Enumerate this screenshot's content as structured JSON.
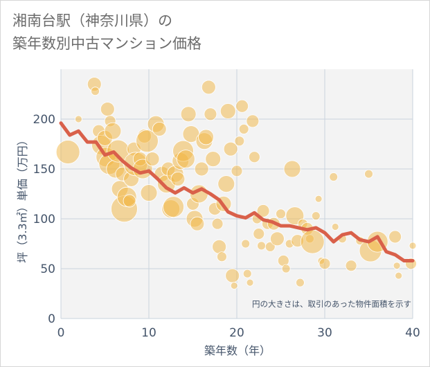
{
  "title_line1": "湘南台駅（神奈川県）の",
  "title_line2": "築年数別中古マンション価格",
  "chart_data": {
    "type": "scatter",
    "xlabel": "築年数（年）",
    "ylabel": "坪（3.3㎡）単価（万円）",
    "note": "円の大きさは、取引のあった物件面積を示す",
    "xlim": [
      0,
      40
    ],
    "ylim": [
      0,
      250
    ],
    "xticks": [
      "0",
      "10",
      "20",
      "30",
      "40"
    ],
    "yticks": [
      "0",
      "50",
      "100",
      "150",
      "200"
    ],
    "bubble_color": "#f2b541",
    "line_color": "#d9604a",
    "grid": true,
    "trend_line": {
      "x": [
        0,
        1,
        2,
        3,
        4,
        5,
        6,
        7,
        8,
        9,
        10,
        11,
        12,
        13,
        14,
        15,
        16,
        17,
        18,
        19,
        20,
        21,
        22,
        23,
        24,
        25,
        26,
        27,
        28,
        29,
        30,
        31,
        32,
        33,
        34,
        35,
        36,
        37,
        38,
        39,
        40
      ],
      "y": [
        196,
        184,
        188,
        177,
        177,
        164,
        167,
        158,
        151,
        146,
        148,
        140,
        131,
        126,
        131,
        126,
        130,
        125,
        119,
        107,
        103,
        101,
        106,
        99,
        97,
        93,
        93,
        91,
        89,
        91,
        86,
        77,
        84,
        86,
        79,
        77,
        82,
        67,
        64,
        58,
        58
      ]
    },
    "bubbles": [
      {
        "x": 0.8,
        "y": 167,
        "s": 17
      },
      {
        "x": 2,
        "y": 200,
        "s": 5
      },
      {
        "x": 3.8,
        "y": 235,
        "s": 10
      },
      {
        "x": 3.9,
        "y": 228,
        "s": 6
      },
      {
        "x": 4.3,
        "y": 188,
        "s": 9
      },
      {
        "x": 4.6,
        "y": 174,
        "s": 14
      },
      {
        "x": 5,
        "y": 181,
        "s": 11
      },
      {
        "x": 5.1,
        "y": 162,
        "s": 14
      },
      {
        "x": 5.3,
        "y": 210,
        "s": 10
      },
      {
        "x": 5.6,
        "y": 198,
        "s": 8
      },
      {
        "x": 5.9,
        "y": 188,
        "s": 12
      },
      {
        "x": 5.5,
        "y": 155,
        "s": 15
      },
      {
        "x": 6.2,
        "y": 150,
        "s": 13
      },
      {
        "x": 6.5,
        "y": 168,
        "s": 16
      },
      {
        "x": 6.7,
        "y": 130,
        "s": 12
      },
      {
        "x": 7,
        "y": 145,
        "s": 10
      },
      {
        "x": 7.2,
        "y": 110,
        "s": 19
      },
      {
        "x": 7.5,
        "y": 122,
        "s": 14
      },
      {
        "x": 7.8,
        "y": 118,
        "s": 9
      },
      {
        "x": 8,
        "y": 140,
        "s": 11
      },
      {
        "x": 8.3,
        "y": 170,
        "s": 10
      },
      {
        "x": 8.5,
        "y": 155,
        "s": 17
      },
      {
        "x": 9,
        "y": 160,
        "s": 10
      },
      {
        "x": 9.3,
        "y": 150,
        "s": 14
      },
      {
        "x": 9.5,
        "y": 183,
        "s": 10
      },
      {
        "x": 9.8,
        "y": 178,
        "s": 16
      },
      {
        "x": 10,
        "y": 126,
        "s": 12
      },
      {
        "x": 10.4,
        "y": 160,
        "s": 10
      },
      {
        "x": 10.8,
        "y": 195,
        "s": 12
      },
      {
        "x": 11.2,
        "y": 190,
        "s": 10
      },
      {
        "x": 11.5,
        "y": 145,
        "s": 11
      },
      {
        "x": 12,
        "y": 135,
        "s": 13
      },
      {
        "x": 12.2,
        "y": 150,
        "s": 10
      },
      {
        "x": 12.5,
        "y": 110,
        "s": 13
      },
      {
        "x": 12.8,
        "y": 112,
        "s": 15
      },
      {
        "x": 13,
        "y": 145,
        "s": 12
      },
      {
        "x": 13.3,
        "y": 140,
        "s": 10
      },
      {
        "x": 13.6,
        "y": 158,
        "s": 12
      },
      {
        "x": 13.9,
        "y": 168,
        "s": 15
      },
      {
        "x": 14.2,
        "y": 160,
        "s": 13
      },
      {
        "x": 14.5,
        "y": 205,
        "s": 11
      },
      {
        "x": 14.8,
        "y": 185,
        "s": 12
      },
      {
        "x": 15,
        "y": 115,
        "s": 9
      },
      {
        "x": 15.2,
        "y": 100,
        "s": 12
      },
      {
        "x": 15.5,
        "y": 95,
        "s": 10
      },
      {
        "x": 15.7,
        "y": 125,
        "s": 13
      },
      {
        "x": 16,
        "y": 150,
        "s": 10
      },
      {
        "x": 16.3,
        "y": 178,
        "s": 12
      },
      {
        "x": 16.5,
        "y": 182,
        "s": 11
      },
      {
        "x": 16.8,
        "y": 232,
        "s": 10
      },
      {
        "x": 17,
        "y": 205,
        "s": 9
      },
      {
        "x": 17.3,
        "y": 160,
        "s": 11
      },
      {
        "x": 17.5,
        "y": 110,
        "s": 9
      },
      {
        "x": 17.8,
        "y": 95,
        "s": 8
      },
      {
        "x": 18,
        "y": 72,
        "s": 10
      },
      {
        "x": 18.3,
        "y": 62,
        "s": 7
      },
      {
        "x": 18.5,
        "y": 115,
        "s": 11
      },
      {
        "x": 18.8,
        "y": 135,
        "s": 12
      },
      {
        "x": 19,
        "y": 208,
        "s": 11
      },
      {
        "x": 19.3,
        "y": 170,
        "s": 10
      },
      {
        "x": 19.5,
        "y": 43,
        "s": 10
      },
      {
        "x": 19.7,
        "y": 33,
        "s": 5
      },
      {
        "x": 20,
        "y": 148,
        "s": 8
      },
      {
        "x": 20.3,
        "y": 178,
        "s": 7
      },
      {
        "x": 20.6,
        "y": 213,
        "s": 9
      },
      {
        "x": 20.8,
        "y": 190,
        "s": 7
      },
      {
        "x": 21,
        "y": 75,
        "s": 6
      },
      {
        "x": 21.2,
        "y": 45,
        "s": 6
      },
      {
        "x": 21.5,
        "y": 36,
        "s": 5
      },
      {
        "x": 21.8,
        "y": 198,
        "s": 9
      },
      {
        "x": 22,
        "y": 162,
        "s": 8
      },
      {
        "x": 22.3,
        "y": 100,
        "s": 7
      },
      {
        "x": 22.5,
        "y": 85,
        "s": 8
      },
      {
        "x": 22.8,
        "y": 73,
        "s": 6
      },
      {
        "x": 23,
        "y": 108,
        "s": 9
      },
      {
        "x": 23.5,
        "y": 95,
        "s": 8
      },
      {
        "x": 23.8,
        "y": 72,
        "s": 7
      },
      {
        "x": 24.2,
        "y": 95,
        "s": 9
      },
      {
        "x": 24.6,
        "y": 80,
        "s": 10
      },
      {
        "x": 25,
        "y": 105,
        "s": 7
      },
      {
        "x": 25.3,
        "y": 58,
        "s": 8
      },
      {
        "x": 25.6,
        "y": 50,
        "s": 6
      },
      {
        "x": 26,
        "y": 75,
        "s": 6
      },
      {
        "x": 26.3,
        "y": 150,
        "s": 12
      },
      {
        "x": 26.6,
        "y": 103,
        "s": 13
      },
      {
        "x": 26.9,
        "y": 78,
        "s": 9
      },
      {
        "x": 27.2,
        "y": 36,
        "s": 6
      },
      {
        "x": 27.5,
        "y": 95,
        "s": 7
      },
      {
        "x": 28,
        "y": 90,
        "s": 9
      },
      {
        "x": 28.3,
        "y": 80,
        "s": 6
      },
      {
        "x": 28.6,
        "y": 77,
        "s": 17
      },
      {
        "x": 29,
        "y": 103,
        "s": 6
      },
      {
        "x": 29.3,
        "y": 120,
        "s": 5
      },
      {
        "x": 29.6,
        "y": 58,
        "s": 5
      },
      {
        "x": 30,
        "y": 55,
        "s": 8
      },
      {
        "x": 31,
        "y": 142,
        "s": 6
      },
      {
        "x": 31.2,
        "y": 92,
        "s": 5
      },
      {
        "x": 32,
        "y": 80,
        "s": 6
      },
      {
        "x": 33,
        "y": 53,
        "s": 8
      },
      {
        "x": 34,
        "y": 78,
        "s": 6
      },
      {
        "x": 35,
        "y": 145,
        "s": 6
      },
      {
        "x": 35.2,
        "y": 68,
        "s": 16
      },
      {
        "x": 36,
        "y": 77,
        "s": 15
      },
      {
        "x": 38,
        "y": 82,
        "s": 9
      },
      {
        "x": 38.2,
        "y": 53,
        "s": 5
      },
      {
        "x": 38.4,
        "y": 43,
        "s": 5
      },
      {
        "x": 39.8,
        "y": 55,
        "s": 8
      },
      {
        "x": 40,
        "y": 73,
        "s": 5
      }
    ]
  }
}
